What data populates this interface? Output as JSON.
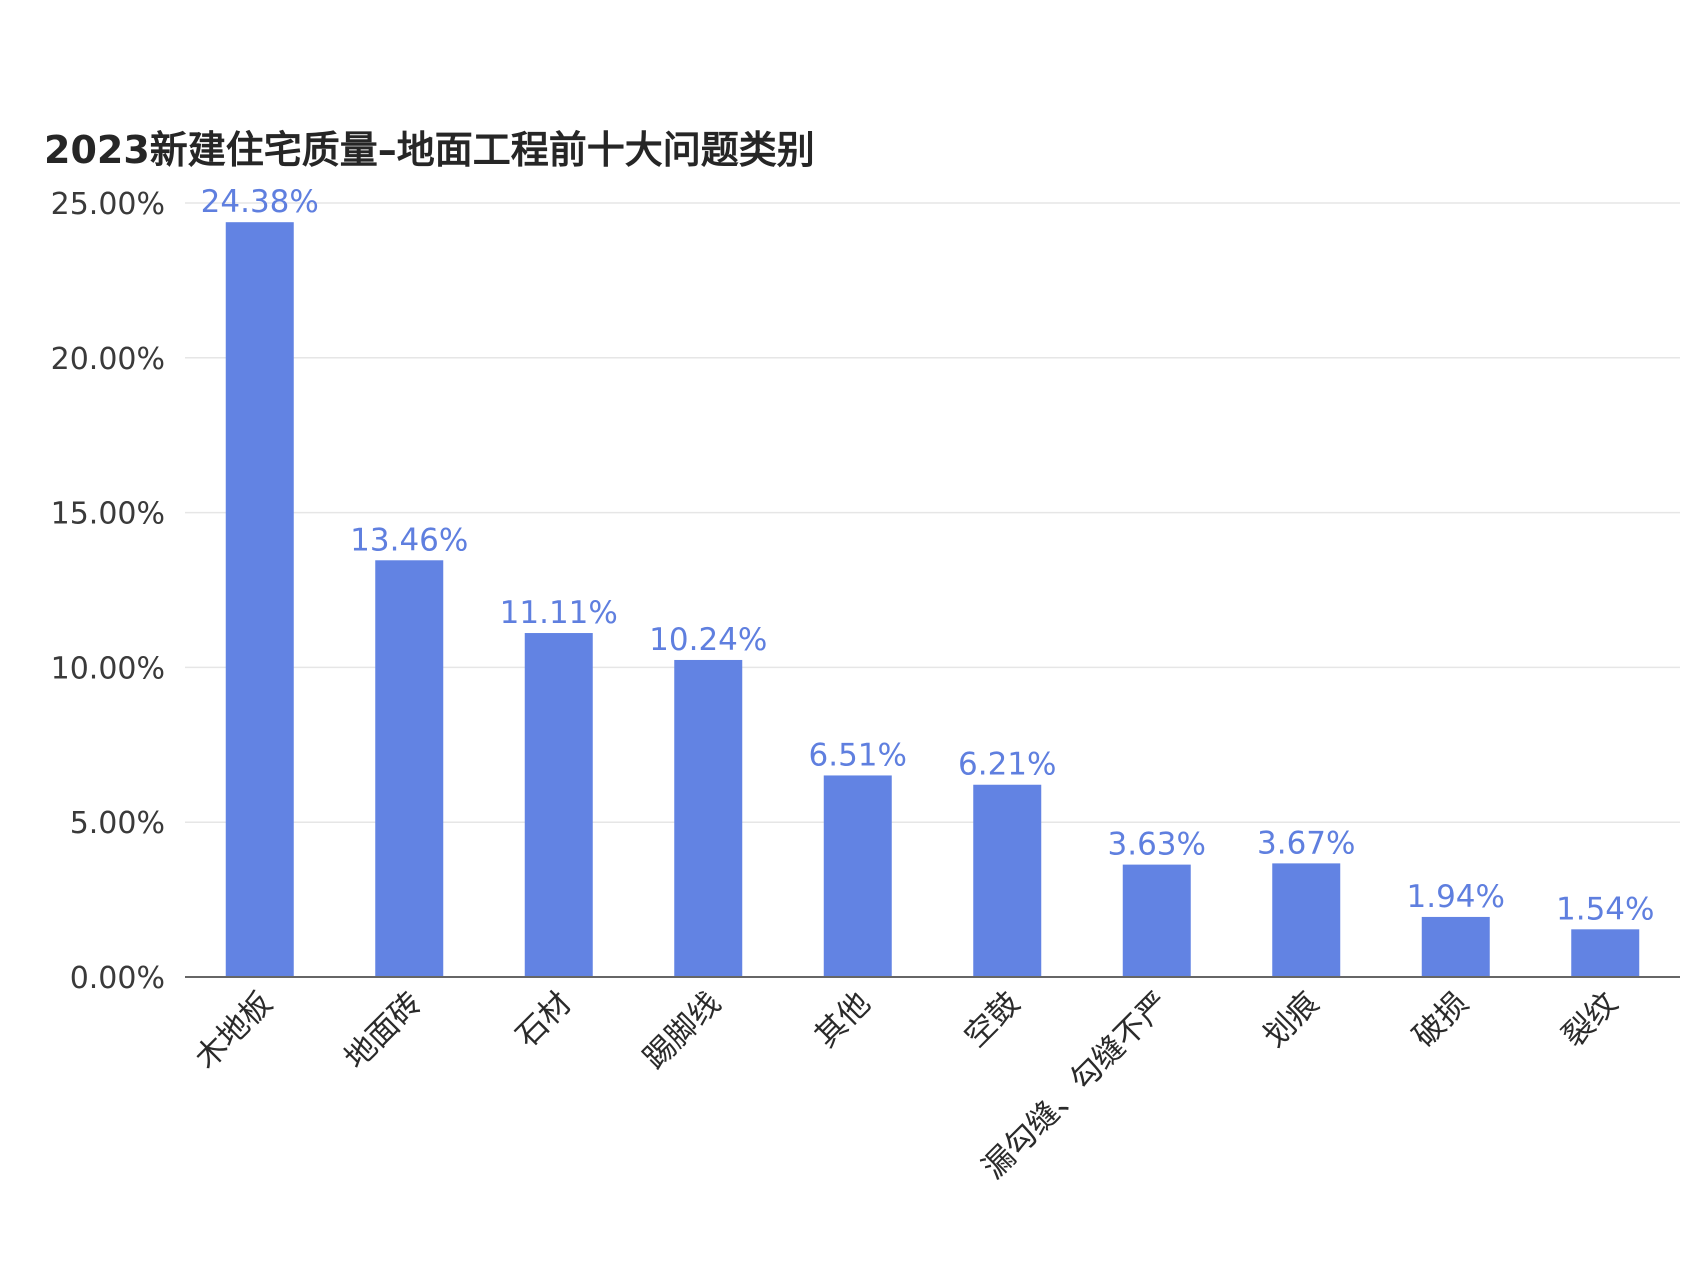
{
  "chart_data": {
    "type": "bar",
    "title": "2023新建住宅质量–地面工程前十大问题类别",
    "xlabel": "",
    "ylabel": "",
    "categories": [
      "木地板",
      "地面砖",
      "石材",
      "踢脚线",
      "其他",
      "空鼓",
      "漏勾缝、勾缝不严",
      "划痕",
      "破损",
      "裂纹"
    ],
    "values": [
      24.38,
      13.46,
      11.11,
      10.24,
      6.51,
      6.21,
      3.63,
      3.67,
      1.94,
      1.54
    ],
    "value_labels": [
      "24.38%",
      "13.46%",
      "11.11%",
      "10.24%",
      "6.51%",
      "6.21%",
      "3.63%",
      "3.67%",
      "1.94%",
      "1.54%"
    ],
    "ylim": [
      0,
      25
    ],
    "y_ticks": [
      0,
      5,
      10,
      15,
      20,
      25
    ],
    "y_tick_labels": [
      "0.00%",
      "5.00%",
      "10.00%",
      "15.00%",
      "20.00%",
      "25.00%"
    ],
    "grid": true,
    "legend": "none",
    "colors": {
      "bar": "#6283e3",
      "data_label": "#5f7fdf",
      "gridline": "#e6e6e6",
      "axis": "#666666"
    }
  }
}
